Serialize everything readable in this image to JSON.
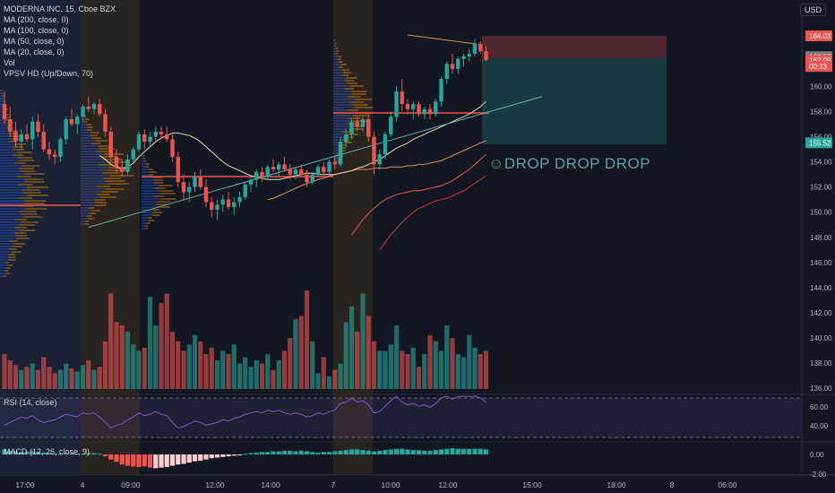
{
  "header": {
    "symbol_line": "MODERNA INC, 15, Cboe BZX",
    "indicators": [
      "MA (200, close, 0)",
      "MA (100, close, 0)",
      "MA (50, close, 0)",
      "MA (20, close, 0)",
      "Vol",
      "VPSV HD (Up/Down, 70)"
    ],
    "currency": "USD"
  },
  "annotation": {
    "text": "☺DROP DROP DROP"
  },
  "rsi": {
    "label": "RSI (14, close)",
    "ticks": [
      "60.00",
      "40.00"
    ]
  },
  "macd": {
    "label": "MACD (12, 26, close, 9)",
    "ticks": [
      "0.00",
      "-2.00"
    ]
  },
  "colors": {
    "background": "#131722",
    "up": "#26a69a",
    "down": "#ef5350",
    "ma20": "#e8d7b0",
    "ma50": "#d98c5f",
    "ma100": "#e05a4d",
    "ma200": "#c43c3c",
    "trendline": "#5fb0a8",
    "rsi": "#7e57c2"
  },
  "chart_data": {
    "type": "candlestick",
    "y_axis": {
      "range": [
        135.5,
        166.2
      ],
      "ticks": [
        "164.00",
        "162.00",
        "160.00",
        "158.00",
        "156.00",
        "154.00",
        "152.00",
        "150.00",
        "148.00",
        "146.00",
        "144.00",
        "142.00",
        "140.00",
        "138.00",
        "136.00"
      ],
      "price_labels": [
        {
          "text": "164.03",
          "value": 164.03,
          "color": "#ef5350"
        },
        {
          "text": "162.37",
          "value": 162.37,
          "color": "#787b86"
        },
        {
          "text": "162.09",
          "value": 162.09,
          "color": "#ef5350"
        },
        {
          "text": "00:33",
          "value": 161.6,
          "color": "#ef5350"
        },
        {
          "text": "155.52",
          "value": 155.52,
          "color": "#26a69a"
        }
      ]
    },
    "x_axis": {
      "ticks": [
        "17:00",
        "4",
        "09:00",
        "12:00",
        "14:00",
        "7",
        "10:00",
        "12:00",
        "15:00",
        "18:00",
        "8",
        "06:00"
      ]
    },
    "candles": [
      [
        158.6,
        159.6,
        157.0,
        157.4
      ],
      [
        157.4,
        158.4,
        156.0,
        156.4
      ],
      [
        156.4,
        157.2,
        155.2,
        155.6
      ],
      [
        155.6,
        156.6,
        155.0,
        156.2
      ],
      [
        156.2,
        157.0,
        155.6,
        155.8
      ],
      [
        155.8,
        157.6,
        155.0,
        157.2
      ],
      [
        157.2,
        157.8,
        156.0,
        156.4
      ],
      [
        156.4,
        157.0,
        154.8,
        155.0
      ],
      [
        155.0,
        155.6,
        154.2,
        154.6
      ],
      [
        154.6,
        155.0,
        153.8,
        154.4
      ],
      [
        154.4,
        156.0,
        154.0,
        155.8
      ],
      [
        155.8,
        157.6,
        155.4,
        157.4
      ],
      [
        157.4,
        158.2,
        156.8,
        157.0
      ],
      [
        157.0,
        157.8,
        156.2,
        157.6
      ],
      [
        157.6,
        158.6,
        157.2,
        158.4
      ],
      [
        158.4,
        159.2,
        158.0,
        158.2
      ],
      [
        158.2,
        158.8,
        157.8,
        158.6
      ],
      [
        158.6,
        159.0,
        157.6,
        157.8
      ],
      [
        157.8,
        158.2,
        156.0,
        156.4
      ],
      [
        156.4,
        156.8,
        154.0,
        154.4
      ],
      [
        154.4,
        155.0,
        153.2,
        153.6
      ],
      [
        153.6,
        154.2,
        152.8,
        153.2
      ],
      [
        153.2,
        154.6,
        153.0,
        154.2
      ],
      [
        154.2,
        155.2,
        153.8,
        155.0
      ],
      [
        155.0,
        156.4,
        154.8,
        156.2
      ],
      [
        156.2,
        156.6,
        155.0,
        155.6
      ],
      [
        155.6,
        156.4,
        155.2,
        156.0
      ],
      [
        156.0,
        156.8,
        155.6,
        156.4
      ],
      [
        156.4,
        156.8,
        155.8,
        156.2
      ],
      [
        156.2,
        156.8,
        155.6,
        155.8
      ],
      [
        155.8,
        156.2,
        154.0,
        154.4
      ],
      [
        154.4,
        154.8,
        152.0,
        152.4
      ],
      [
        152.4,
        153.0,
        151.0,
        151.6
      ],
      [
        151.6,
        152.4,
        150.8,
        152.0
      ],
      [
        152.0,
        153.2,
        151.6,
        152.8
      ],
      [
        152.8,
        153.4,
        151.8,
        152.0
      ],
      [
        152.0,
        152.6,
        150.4,
        150.8
      ],
      [
        150.8,
        151.2,
        149.6,
        150.2
      ],
      [
        150.2,
        151.0,
        149.4,
        150.6
      ],
      [
        150.6,
        151.4,
        150.0,
        151.0
      ],
      [
        151.0,
        151.6,
        150.2,
        150.4
      ],
      [
        150.4,
        151.2,
        149.8,
        150.8
      ],
      [
        150.8,
        151.6,
        150.4,
        151.2
      ],
      [
        151.2,
        152.4,
        151.0,
        152.2
      ],
      [
        152.2,
        153.0,
        151.6,
        152.6
      ],
      [
        152.6,
        153.4,
        152.0,
        153.2
      ],
      [
        153.2,
        153.6,
        152.4,
        152.8
      ],
      [
        152.8,
        153.8,
        152.6,
        153.6
      ],
      [
        153.6,
        154.2,
        153.2,
        153.4
      ],
      [
        153.4,
        154.0,
        152.8,
        153.8
      ],
      [
        153.8,
        154.4,
        153.2,
        153.4
      ],
      [
        153.4,
        153.8,
        152.6,
        153.0
      ],
      [
        153.0,
        153.6,
        152.6,
        153.4
      ],
      [
        153.4,
        153.8,
        152.8,
        153.0
      ],
      [
        153.0,
        153.4,
        152.0,
        152.4
      ],
      [
        152.4,
        153.2,
        152.2,
        153.0
      ],
      [
        153.0,
        153.8,
        152.8,
        153.6
      ],
      [
        153.6,
        154.0,
        152.8,
        153.2
      ],
      [
        153.2,
        154.2,
        153.0,
        154.0
      ],
      [
        154.0,
        154.4,
        153.4,
        153.8
      ],
      [
        153.8,
        156.0,
        153.6,
        155.6
      ],
      [
        155.6,
        156.6,
        155.2,
        156.2
      ],
      [
        156.2,
        157.4,
        155.8,
        157.2
      ],
      [
        157.2,
        157.6,
        156.4,
        156.8
      ],
      [
        156.8,
        157.6,
        156.4,
        157.4
      ],
      [
        157.4,
        157.8,
        155.6,
        156.0
      ],
      [
        156.0,
        156.4,
        153.0,
        153.8
      ],
      [
        153.8,
        155.0,
        153.4,
        154.6
      ],
      [
        154.6,
        156.4,
        154.2,
        156.2
      ],
      [
        156.2,
        158.0,
        156.0,
        157.6
      ],
      [
        157.6,
        160.0,
        157.2,
        159.6
      ],
      [
        159.6,
        160.6,
        158.0,
        158.6
      ],
      [
        158.6,
        159.0,
        157.8,
        158.2
      ],
      [
        158.2,
        158.8,
        157.4,
        158.6
      ],
      [
        158.6,
        158.8,
        157.6,
        157.8
      ],
      [
        157.8,
        158.4,
        157.4,
        158.2
      ],
      [
        158.2,
        158.6,
        157.4,
        157.8
      ],
      [
        157.8,
        159.0,
        157.6,
        158.8
      ],
      [
        158.8,
        160.8,
        158.4,
        160.6
      ],
      [
        160.6,
        162.0,
        160.2,
        161.8
      ],
      [
        161.8,
        162.6,
        161.0,
        161.4
      ],
      [
        161.4,
        162.4,
        161.0,
        162.2
      ],
      [
        162.2,
        162.6,
        161.6,
        162.4
      ],
      [
        162.4,
        163.0,
        162.0,
        162.6
      ],
      [
        162.6,
        163.8,
        162.4,
        163.4
      ],
      [
        163.4,
        163.6,
        162.6,
        162.8
      ],
      [
        162.8,
        163.2,
        162.0,
        162.1
      ]
    ],
    "volume": [
      22,
      18,
      15,
      12,
      14,
      16,
      12,
      20,
      14,
      10,
      12,
      16,
      13,
      11,
      15,
      18,
      12,
      14,
      30,
      60,
      42,
      40,
      36,
      28,
      24,
      26,
      58,
      40,
      54,
      60,
      36,
      30,
      24,
      28,
      34,
      30,
      22,
      26,
      18,
      24,
      22,
      28,
      16,
      20,
      14,
      18,
      16,
      22,
      12,
      18,
      24,
      32,
      44,
      46,
      62,
      30,
      10,
      20,
      8,
      12,
      16,
      42,
      52,
      36,
      60,
      46,
      30,
      24,
      24,
      28,
      40,
      24,
      22,
      26,
      14,
      22,
      34,
      30,
      24,
      40,
      32,
      22,
      20,
      34,
      26,
      22,
      24
    ],
    "macd": [
      0.8,
      0.6,
      0.5,
      0.4,
      0.4,
      0.5,
      0.4,
      0.3,
      0.2,
      0.1,
      0.1,
      0.2,
      0.2,
      0.1,
      0.1,
      0.2,
      0.2,
      0.1,
      -0.3,
      -0.8,
      -1.2,
      -1.6,
      -1.8,
      -1.9,
      -2.0,
      -1.9,
      -2.1,
      -2.2,
      -2.1,
      -2.0,
      -1.8,
      -1.6,
      -1.5,
      -1.3,
      -1.1,
      -1.0,
      -0.8,
      -0.6,
      -0.5,
      -0.4,
      -0.3,
      -0.2,
      -0.1,
      0.1,
      0.2,
      0.3,
      0.4,
      0.4,
      0.5,
      0.5,
      0.6,
      0.6,
      0.5,
      0.6,
      0.5,
      0.4,
      0.3,
      0.4,
      0.4,
      0.5,
      0.6,
      0.7,
      0.8,
      0.8,
      0.7,
      0.6,
      0.5,
      0.6,
      0.7,
      0.8,
      0.9,
      0.9,
      0.8,
      0.7,
      0.7,
      0.6,
      0.6,
      0.7,
      0.8,
      0.9,
      1.0,
      0.9,
      0.9,
      0.9,
      0.9,
      0.9,
      0.8
    ],
    "rsi": [
      46,
      48,
      50,
      52,
      51,
      53,
      50,
      48,
      49,
      50,
      52,
      54,
      53,
      52,
      55,
      54,
      55,
      52,
      48,
      44,
      46,
      47,
      50,
      52,
      55,
      53,
      54,
      56,
      54,
      53,
      48,
      44,
      45,
      47,
      49,
      48,
      46,
      47,
      48,
      50,
      49,
      51,
      52,
      54,
      55,
      56,
      55,
      57,
      56,
      57,
      55,
      54,
      55,
      54,
      52,
      53,
      55,
      54,
      56,
      57,
      62,
      63,
      66,
      63,
      64,
      61,
      55,
      56,
      60,
      64,
      68,
      63,
      61,
      62,
      60,
      61,
      59,
      62,
      66,
      68,
      65,
      67,
      68,
      67,
      69,
      66,
      63
    ],
    "ma20": [
      154.5,
      154.2,
      153.8,
      153.6,
      153.4,
      153.6,
      153.9,
      154.4,
      154.8,
      155.2,
      155.6,
      155.9,
      156.1,
      156.3,
      156.3,
      156.2,
      156.1,
      155.9,
      155.6,
      155.2,
      154.8,
      154.4,
      154.0,
      153.7,
      153.5,
      153.3,
      153.1,
      152.9,
      152.8,
      152.7,
      152.6,
      152.6,
      152.6,
      152.7,
      152.8,
      152.9,
      153.0,
      153.1,
      153.1,
      153.0,
      153.0,
      153.0,
      153.0,
      153.1,
      153.2,
      153.3,
      153.5,
      153.6,
      153.8,
      154.0,
      154.2,
      154.5,
      154.8,
      155.1,
      155.3,
      155.5,
      155.8,
      156.0,
      156.2,
      156.4,
      156.6,
      156.8,
      157.0,
      157.2,
      157.4,
      157.6,
      157.8,
      158.1,
      158.4,
      158.8
    ],
    "ma50": [
      151.0,
      151.1,
      151.3,
      151.5,
      151.7,
      151.9,
      152.1,
      152.3,
      152.4,
      152.6,
      152.7,
      152.9,
      153.0,
      153.1,
      153.2,
      153.3,
      153.4,
      153.4,
      153.4,
      153.5,
      153.5,
      153.5,
      153.6,
      153.6,
      153.6,
      153.7,
      153.7,
      153.8,
      153.8,
      153.9,
      154.0,
      154.1,
      154.3,
      154.5,
      154.7,
      154.9,
      155.1,
      155.3,
      155.5,
      155.7
    ],
    "ma100": [
      148.2,
      148.8,
      149.4,
      149.9,
      150.3,
      150.7,
      151.0,
      151.2,
      151.4,
      151.5,
      151.6,
      151.7,
      151.7,
      151.8,
      151.9,
      152.0,
      152.1,
      152.3,
      152.5,
      152.8,
      153.1,
      153.4,
      153.8,
      154.2,
      154.6
    ],
    "ma200": [
      147.0,
      147.6,
      148.2,
      148.7,
      149.2,
      149.6,
      150.0,
      150.3,
      150.5,
      150.7,
      150.9,
      151.0,
      151.1,
      151.3,
      151.5,
      151.7,
      152.0,
      152.3,
      152.6,
      152.9
    ],
    "trendlines": [
      {
        "from": [
          15,
          148.8
        ],
        "to": [
          96,
          159.2
        ],
        "color": "#5fb0a8"
      },
      {
        "from": [
          72,
          164.1
        ],
        "to": [
          84,
          163.4
        ],
        "color": "#d98c5f"
      }
    ],
    "position": {
      "entry": 162.37,
      "stop": 164.03,
      "target": 155.52
    }
  }
}
